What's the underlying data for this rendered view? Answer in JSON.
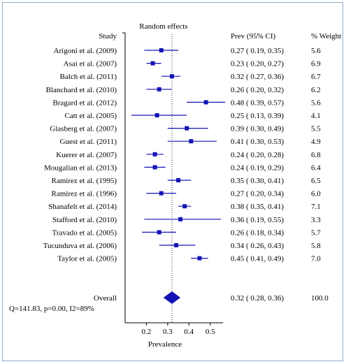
{
  "chart_data": {
    "type": "forest",
    "title": "Random effects",
    "col_study": "Study",
    "col_prev": "Prev (95% CI)",
    "col_weight": "% Weight",
    "xlabel": "Prevalence",
    "xticks": [
      "0.2",
      "0.3",
      "0.4",
      "0.5"
    ],
    "xlim": [
      0.1,
      0.56
    ],
    "reference_line": 0.32,
    "studies": [
      {
        "label": "Arigoni et al. (2009)",
        "est": 0.27,
        "lo": 0.19,
        "hi": 0.35,
        "ci": "0.27  ( 0.19, 0.35)",
        "weight": "5.6"
      },
      {
        "label": "Asai et al. (2007)",
        "est": 0.23,
        "lo": 0.2,
        "hi": 0.27,
        "ci": "0.23  ( 0.20, 0.27)",
        "weight": "6.9"
      },
      {
        "label": "Balch et al. (2011)",
        "est": 0.32,
        "lo": 0.27,
        "hi": 0.36,
        "ci": "0.32  ( 0.27, 0.36)",
        "weight": "6.7"
      },
      {
        "label": "Blanchard et al. (2010)",
        "est": 0.26,
        "lo": 0.2,
        "hi": 0.32,
        "ci": "0.26  ( 0.20, 0.32)",
        "weight": "6.2"
      },
      {
        "label": "Bragard et al. (2012)",
        "est": 0.48,
        "lo": 0.39,
        "hi": 0.57,
        "ci": "0.48  ( 0.39, 0.57)",
        "weight": "5.6"
      },
      {
        "label": "Catt et al. (2005)",
        "est": 0.25,
        "lo": 0.13,
        "hi": 0.39,
        "ci": "0.25  ( 0.13, 0.39)",
        "weight": "4.1"
      },
      {
        "label": "Glasberg et al. (2007)",
        "est": 0.39,
        "lo": 0.3,
        "hi": 0.49,
        "ci": "0.39  ( 0.30, 0.49)",
        "weight": "5.5"
      },
      {
        "label": "Guest et al. (2011)",
        "est": 0.41,
        "lo": 0.3,
        "hi": 0.53,
        "ci": "0.41  ( 0.30, 0.53)",
        "weight": "4.9"
      },
      {
        "label": "Kuerer et al. (2007)",
        "est": 0.24,
        "lo": 0.2,
        "hi": 0.28,
        "ci": "0.24  ( 0.20, 0.28)",
        "weight": "6.8"
      },
      {
        "label": "Mougalian et al. (2013)",
        "est": 0.24,
        "lo": 0.19,
        "hi": 0.29,
        "ci": "0.24  ( 0.19, 0.29)",
        "weight": "6.4"
      },
      {
        "label": "Ramirez et al. (1995)",
        "est": 0.35,
        "lo": 0.3,
        "hi": 0.41,
        "ci": "0.35  ( 0.30, 0.41)",
        "weight": "6.5"
      },
      {
        "label": "Ramirez et al. (1996)",
        "est": 0.27,
        "lo": 0.2,
        "hi": 0.34,
        "ci": "0.27  ( 0.20, 0.34)",
        "weight": "6.0"
      },
      {
        "label": "Shanafelt et al. (2014)",
        "est": 0.38,
        "lo": 0.35,
        "hi": 0.41,
        "ci": "0.38  ( 0.35, 0.41)",
        "weight": "7.1"
      },
      {
        "label": "Stafford et al. (2010)",
        "est": 0.36,
        "lo": 0.19,
        "hi": 0.55,
        "ci": "0.36  ( 0.19, 0.55)",
        "weight": "3.3"
      },
      {
        "label": "Travado et al. (2005)",
        "est": 0.26,
        "lo": 0.18,
        "hi": 0.34,
        "ci": "0.26  ( 0.18, 0.34)",
        "weight": "5.7"
      },
      {
        "label": "Tucunduva et al. (2006)",
        "est": 0.34,
        "lo": 0.26,
        "hi": 0.43,
        "ci": "0.34  ( 0.26, 0.43)",
        "weight": "5.8"
      },
      {
        "label": "Taylor et al. (2005)",
        "est": 0.45,
        "lo": 0.41,
        "hi": 0.49,
        "ci": "0.45  ( 0.41, 0.49)",
        "weight": "7.0"
      }
    ],
    "overall": {
      "label": "Overall",
      "est": 0.32,
      "lo": 0.28,
      "hi": 0.36,
      "ci": "0.32  ( 0.28, 0.36)",
      "weight": "100.0"
    },
    "heterogeneity": "Q=141.83, p=0.00, I2=89%",
    "colors": {
      "marker": "#1414b4",
      "title": "#1a1acc",
      "frame": "#8ea9c9"
    }
  }
}
